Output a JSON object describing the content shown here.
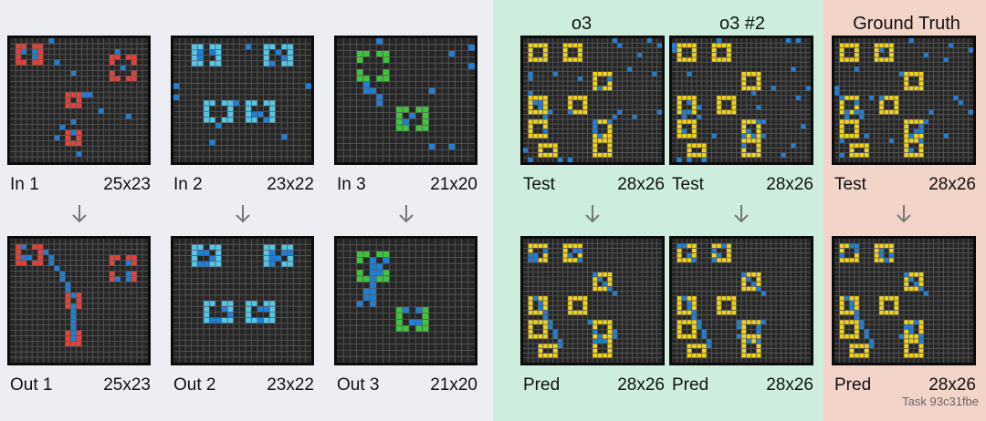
{
  "colors": {
    "bg_examples": "#eceef4",
    "bg_o3": "#cdeedd",
    "bg_truth": "#f3d4c9",
    "grid_bg": "#262626",
    "grid_line": "#5a5a5a",
    "blue": "#1e7fd8",
    "red": "#e84038",
    "cyan": "#55c6e8",
    "green": "#3ec53c",
    "yellow": "#f0d21b"
  },
  "headers": {
    "o3": "o3",
    "o3_2": "o3 #2",
    "truth": "Ground Truth"
  },
  "task_label": "Task 93c31fbe",
  "pairs": [
    {
      "in_label": "In 1",
      "in_dim": "25x23",
      "out_label": "Out 1",
      "out_dim": "25x23",
      "color": "#e84038"
    },
    {
      "in_label": "In 2",
      "in_dim": "23x22",
      "out_label": "Out 2",
      "out_dim": "23x22",
      "color": "#55c6e8"
    },
    {
      "in_label": "In 3",
      "in_dim": "21x20",
      "out_label": "Out 3",
      "out_dim": "21x20",
      "color": "#3ec53c"
    },
    {
      "in_label": "Test",
      "in_dim": "28x26",
      "out_label": "Pred",
      "out_dim": "28x26",
      "color": "#f0d21b"
    },
    {
      "in_label": "Test",
      "in_dim": "28x26",
      "out_label": "Pred",
      "out_dim": "28x26",
      "color": "#f0d21b"
    },
    {
      "in_label": "Test",
      "in_dim": "28x26",
      "out_label": "Pred",
      "out_dim": "28x26",
      "color": "#f0d21b"
    }
  ]
}
